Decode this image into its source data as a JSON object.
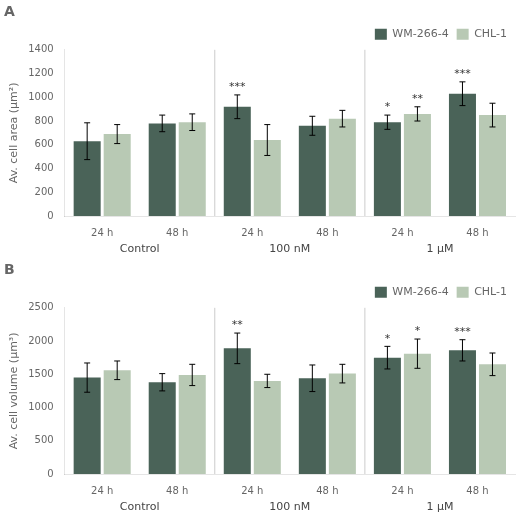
{
  "chart_data": [
    {
      "type": "bar",
      "title": "A",
      "y_label": "Av. cell area (μm²)",
      "categories": [
        "24 h",
        "48 h",
        "24 h",
        "48 h",
        "24 h",
        "48 h"
      ],
      "group_labels": [
        "Control",
        "100 nM",
        "1 μM"
      ],
      "series": [
        {
          "name": "WM-266-4",
          "color": "#4a6358",
          "values": [
            630,
            780,
            920,
            760,
            790,
            1030
          ],
          "errors": [
            155,
            70,
            100,
            80,
            60,
            100
          ]
        },
        {
          "name": "CHL-1",
          "color": "#b8c9b4",
          "values": [
            690,
            790,
            640,
            820,
            860,
            850
          ],
          "errors": [
            80,
            70,
            130,
            70,
            60,
            100
          ]
        }
      ],
      "annotations": [
        {
          "series": "WM-266-4",
          "index": 2,
          "text": "***"
        },
        {
          "series": "WM-266-4",
          "index": 4,
          "text": "*"
        },
        {
          "series": "CHL-1",
          "index": 4,
          "text": "**"
        },
        {
          "series": "WM-266-4",
          "index": 5,
          "text": "***"
        }
      ],
      "ylim": [
        0,
        1400
      ],
      "yticks": [
        0,
        200,
        400,
        600,
        800,
        1000,
        1200,
        1400
      ],
      "grid": false,
      "legend": "upper right"
    },
    {
      "type": "bar",
      "title": "B",
      "y_label": "Av. cell volume (μm³)",
      "categories": [
        "24 h",
        "48 h",
        "24 h",
        "48 h",
        "24 h",
        "48 h"
      ],
      "group_labels": [
        "Control",
        "100 nM",
        "1 μM"
      ],
      "series": [
        {
          "name": "WM-266-4",
          "color": "#4a6358",
          "values": [
            1450,
            1380,
            1890,
            1440,
            1750,
            1860
          ],
          "errors": [
            220,
            130,
            230,
            200,
            170,
            160
          ]
        },
        {
          "name": "CHL-1",
          "color": "#b8c9b4",
          "values": [
            1560,
            1490,
            1400,
            1510,
            1810,
            1650
          ],
          "errors": [
            140,
            160,
            100,
            140,
            220,
            170
          ]
        }
      ],
      "annotations": [
        {
          "series": "WM-266-4",
          "index": 2,
          "text": "**"
        },
        {
          "series": "WM-266-4",
          "index": 4,
          "text": "*"
        },
        {
          "series": "CHL-1",
          "index": 4,
          "text": "*"
        },
        {
          "series": "WM-266-4",
          "index": 5,
          "text": "***"
        }
      ],
      "ylim": [
        0,
        2500
      ],
      "yticks": [
        0,
        500,
        1000,
        1500,
        2000,
        2500
      ],
      "grid": false,
      "legend": "upper right"
    }
  ]
}
